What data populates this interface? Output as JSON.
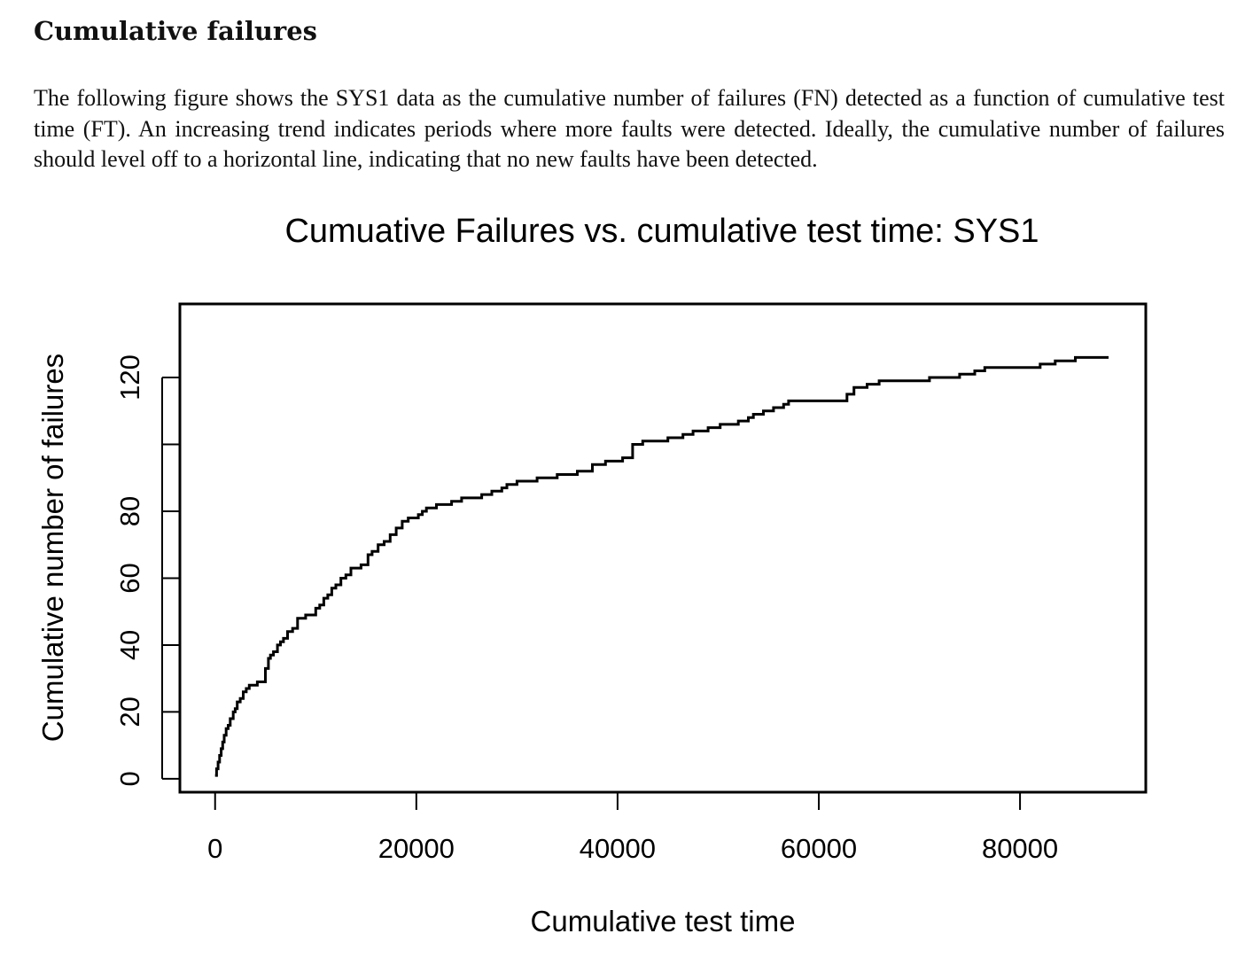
{
  "section": {
    "heading": "Cumulative failures",
    "paragraph": "The following figure shows the SYS1 data as the cumulative number of failures (FN) detected as a function of cumulative test time (FT). An increasing trend indicates periods where more faults were detected. Ideally, the cumulative number of failures should level off to a horizontal line, indicating that no new faults have been detected."
  },
  "chart_data": {
    "type": "line",
    "title": "Cumuative Failures vs. cumulative test time: SYS1",
    "xlabel": "Cumulative test time",
    "ylabel": "Cumulative number of failures",
    "xlim": [
      -3500,
      92500
    ],
    "ylim": [
      -4,
      142
    ],
    "x_ticks": [
      0,
      20000,
      40000,
      60000,
      80000
    ],
    "x_tick_labels": [
      "0",
      "20000",
      "40000",
      "60000",
      "80000"
    ],
    "y_ticks": [
      0,
      20,
      40,
      60,
      80,
      100,
      120
    ],
    "y_tick_labels": [
      "0",
      "20",
      "40",
      "60",
      "80",
      "",
      "120"
    ],
    "grid": false,
    "line_color": "#000000",
    "series": [
      {
        "step": "post",
        "x": [
          0,
          150,
          300,
          450,
          600,
          750,
          900,
          1100,
          1300,
          1500,
          1800,
          2000,
          2200,
          2500,
          2800,
          3100,
          3400,
          4200,
          5000,
          5300,
          5500,
          5800,
          6200,
          6500,
          6800,
          7200,
          7700,
          8200,
          9000,
          10000,
          10400,
          10800,
          11200,
          11600,
          12000,
          12500,
          13000,
          13500,
          14500,
          15200,
          15600,
          16200,
          16800,
          17400,
          18000,
          18600,
          19200,
          20200,
          20600,
          21000,
          22000,
          23500,
          24500,
          26500,
          27500,
          28500,
          29000,
          30000,
          32000,
          34000,
          36000,
          37500,
          38800,
          40500,
          41500,
          42500,
          45000,
          46500,
          47500,
          49000,
          50200,
          52000,
          53000,
          53500,
          54500,
          55500,
          56500,
          57000,
          62800,
          63500,
          64800,
          66000,
          71000,
          74000,
          75500,
          76500,
          82000,
          83500,
          85500,
          88800
        ],
        "y": [
          1,
          3,
          5,
          7,
          9,
          11,
          13,
          15,
          16,
          18,
          20,
          21,
          23,
          24,
          26,
          27,
          28,
          29,
          33,
          36,
          37,
          38,
          40,
          41,
          42,
          44,
          45,
          48,
          49,
          51,
          52,
          54,
          55,
          57,
          58,
          60,
          61,
          63,
          64,
          67,
          68,
          70,
          71,
          73,
          75,
          77,
          78,
          79,
          80,
          81,
          82,
          83,
          84,
          85,
          86,
          87,
          88,
          89,
          90,
          91,
          92,
          94,
          95,
          96,
          100,
          101,
          102,
          103,
          104,
          105,
          106,
          107,
          108,
          109,
          110,
          111,
          112,
          113,
          115,
          117,
          118,
          119,
          120,
          121,
          122,
          123,
          124,
          125,
          126,
          126
        ]
      }
    ]
  }
}
